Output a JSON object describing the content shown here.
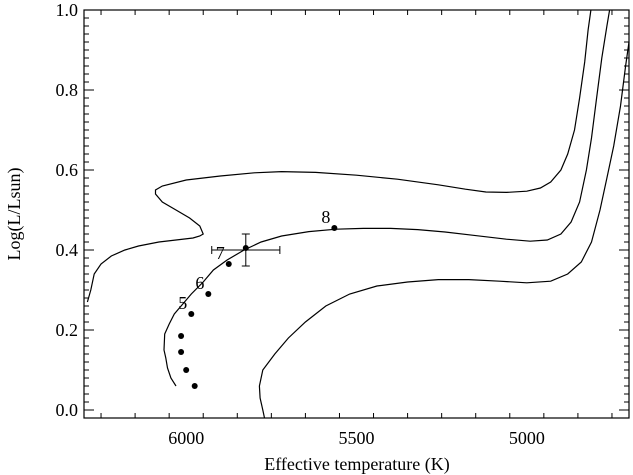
{
  "chart_data": {
    "type": "line",
    "title": "",
    "xlabel": "Effective temperature (K)",
    "ylabel": "Log(L/Lsun)",
    "x_reversed": true,
    "xlim": [
      6300,
      4700
    ],
    "ylim": [
      -0.02,
      1.0
    ],
    "x_ticks": [
      6000,
      5500,
      5000
    ],
    "y_ticks": [
      0.0,
      0.2,
      0.4,
      0.6,
      0.8,
      1.0
    ],
    "x_tick_labels": [
      "6000",
      "5500",
      "5000"
    ],
    "y_tick_labels": [
      "0.0",
      "0.2",
      "0.4",
      "0.6",
      "0.8",
      "1.0"
    ],
    "grid": false,
    "legend": "none",
    "series": [
      {
        "points": [
          [
            6290,
            0.27
          ],
          [
            6280,
            0.3
          ],
          [
            6270,
            0.34
          ],
          [
            6250,
            0.365
          ],
          [
            6220,
            0.385
          ],
          [
            6180,
            0.4
          ],
          [
            6140,
            0.41
          ],
          [
            6080,
            0.42
          ],
          [
            6030,
            0.425
          ],
          [
            5980,
            0.43
          ],
          [
            5960,
            0.435
          ],
          [
            5950,
            0.44
          ],
          [
            5960,
            0.46
          ],
          [
            5990,
            0.48
          ],
          [
            6030,
            0.5
          ],
          [
            6070,
            0.52
          ],
          [
            6090,
            0.54
          ],
          [
            6090,
            0.55
          ],
          [
            6070,
            0.56
          ],
          [
            6000,
            0.575
          ],
          [
            5900,
            0.585
          ],
          [
            5800,
            0.593
          ],
          [
            5720,
            0.596
          ],
          [
            5620,
            0.594
          ],
          [
            5500,
            0.587
          ],
          [
            5380,
            0.577
          ],
          [
            5260,
            0.563
          ],
          [
            5180,
            0.552
          ],
          [
            5120,
            0.545
          ],
          [
            5060,
            0.544
          ],
          [
            5000,
            0.547
          ],
          [
            4960,
            0.555
          ],
          [
            4930,
            0.57
          ],
          [
            4900,
            0.6
          ],
          [
            4880,
            0.64
          ],
          [
            4860,
            0.7
          ],
          [
            4845,
            0.78
          ],
          [
            4830,
            0.87
          ],
          [
            4820,
            0.95
          ],
          [
            4812,
            1.0
          ]
        ]
      },
      {
        "points": [
          [
            6030,
            0.06
          ],
          [
            6045,
            0.08
          ],
          [
            6055,
            0.105
          ],
          [
            6060,
            0.13
          ],
          [
            6065,
            0.15
          ],
          [
            6063,
            0.19
          ],
          [
            6050,
            0.215
          ],
          [
            6035,
            0.24
          ],
          [
            6010,
            0.265
          ],
          [
            5985,
            0.29
          ],
          [
            5950,
            0.32
          ],
          [
            5920,
            0.35
          ],
          [
            5880,
            0.375
          ],
          [
            5830,
            0.4
          ],
          [
            5780,
            0.42
          ],
          [
            5720,
            0.435
          ],
          [
            5640,
            0.446
          ],
          [
            5560,
            0.452
          ],
          [
            5480,
            0.454
          ],
          [
            5400,
            0.454
          ],
          [
            5320,
            0.451
          ],
          [
            5240,
            0.445
          ],
          [
            5160,
            0.437
          ],
          [
            5060,
            0.427
          ],
          [
            4990,
            0.422
          ],
          [
            4940,
            0.425
          ],
          [
            4900,
            0.44
          ],
          [
            4870,
            0.47
          ],
          [
            4845,
            0.52
          ],
          [
            4825,
            0.6
          ],
          [
            4810,
            0.68
          ],
          [
            4795,
            0.78
          ],
          [
            4780,
            0.88
          ],
          [
            4765,
            0.96
          ],
          [
            4757,
            1.0
          ]
        ]
      },
      {
        "points": [
          [
            5770,
            -0.02
          ],
          [
            5775,
            0.0
          ],
          [
            5783,
            0.03
          ],
          [
            5785,
            0.06
          ],
          [
            5775,
            0.1
          ],
          [
            5740,
            0.14
          ],
          [
            5700,
            0.18
          ],
          [
            5650,
            0.22
          ],
          [
            5590,
            0.26
          ],
          [
            5520,
            0.29
          ],
          [
            5440,
            0.31
          ],
          [
            5350,
            0.32
          ],
          [
            5260,
            0.326
          ],
          [
            5170,
            0.326
          ],
          [
            5080,
            0.322
          ],
          [
            5000,
            0.318
          ],
          [
            4930,
            0.322
          ],
          [
            4880,
            0.34
          ],
          [
            4840,
            0.37
          ],
          [
            4810,
            0.42
          ],
          [
            4785,
            0.5
          ],
          [
            4765,
            0.58
          ],
          [
            4745,
            0.66
          ],
          [
            4725,
            0.76
          ],
          [
            4710,
            0.86
          ],
          [
            4700,
            0.92
          ]
        ]
      }
    ],
    "markers": [
      {
        "x": 5975,
        "y": 0.06
      },
      {
        "x": 6000,
        "y": 0.1
      },
      {
        "x": 6015,
        "y": 0.145
      },
      {
        "x": 6015,
        "y": 0.185
      },
      {
        "x": 5985,
        "y": 0.24,
        "label": "5"
      },
      {
        "x": 5935,
        "y": 0.29,
        "label": "6"
      },
      {
        "x": 5875,
        "y": 0.365,
        "label": "7"
      },
      {
        "x": 5825,
        "y": 0.405
      },
      {
        "x": 5565,
        "y": 0.455,
        "label": "8"
      }
    ],
    "error_bars": [
      {
        "x": 5825,
        "y": 0.4,
        "x_err": 100,
        "y_err": 0.04
      }
    ]
  }
}
